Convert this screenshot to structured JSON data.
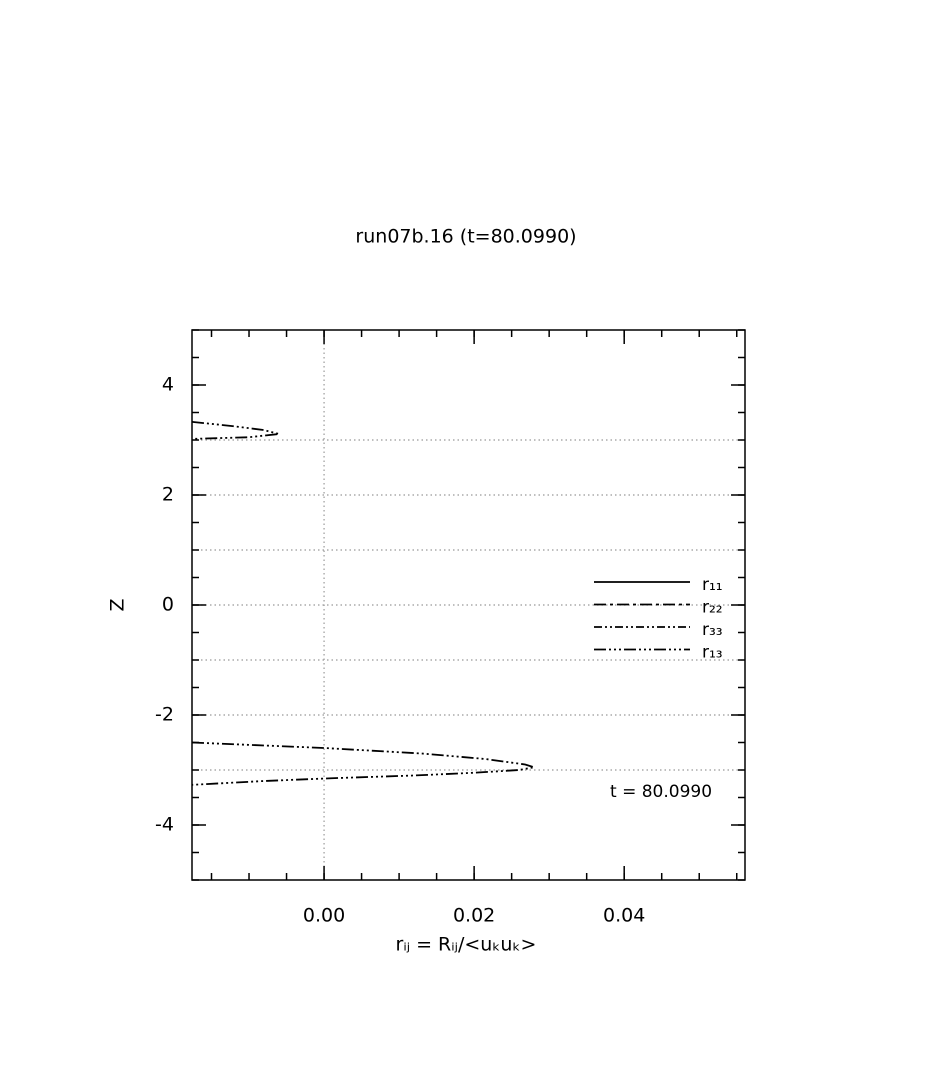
{
  "chart_data": {
    "type": "line",
    "title": "run07b.16 (t=80.0990)",
    "xlabel": "rᵢⱼ = Rᵢⱼ/<uₖuₖ>",
    "ylabel": "Z",
    "annotation": "t = 80.0990",
    "xlim": [
      -0.0176,
      0.0561
    ],
    "ylim": [
      -5,
      5
    ],
    "xticks": [
      {
        "value": 0,
        "label": "0.00"
      },
      {
        "value": 0.02,
        "label": "0.02"
      },
      {
        "value": 0.04,
        "label": "0.04"
      }
    ],
    "yticks": [
      -4,
      -2,
      0,
      2,
      4
    ],
    "xminor_step": 0.005,
    "yminor_step": 0.5,
    "xgrid": [
      0
    ],
    "ygrid": [
      -3,
      -2,
      -1,
      0,
      1,
      2,
      3
    ],
    "series": [
      {
        "name": "r₁₁",
        "color": "#000000",
        "dash": "none",
        "x": [],
        "y": []
      },
      {
        "name": "r₂₂",
        "color": "#000000",
        "dash": "12,4,3,4",
        "x": [],
        "y": []
      },
      {
        "name": "r₃₃",
        "color": "#000000",
        "dash": "8,3,2,3,2,3",
        "x": [],
        "y": []
      },
      {
        "name": "r₁₃",
        "color": "#000000",
        "dash": "12,3,2,3,2,3,2,3",
        "x": [
          -0.0176,
          -0.012,
          -0.008,
          -0.006,
          -0.01,
          -0.0176,
          null,
          -0.0176,
          0.0,
          0.013,
          0.0215,
          0.0268,
          0.028,
          0.026,
          0.02,
          0.012,
          0.001,
          -0.008,
          -0.0176
        ],
        "y": [
          3.33,
          3.25,
          3.18,
          3.11,
          3.05,
          3.02,
          null,
          -2.5,
          -2.6,
          -2.7,
          -2.8,
          -2.9,
          -2.95,
          -3.0,
          -3.05,
          -3.1,
          -3.15,
          -3.2,
          -3.27
        ]
      }
    ]
  }
}
